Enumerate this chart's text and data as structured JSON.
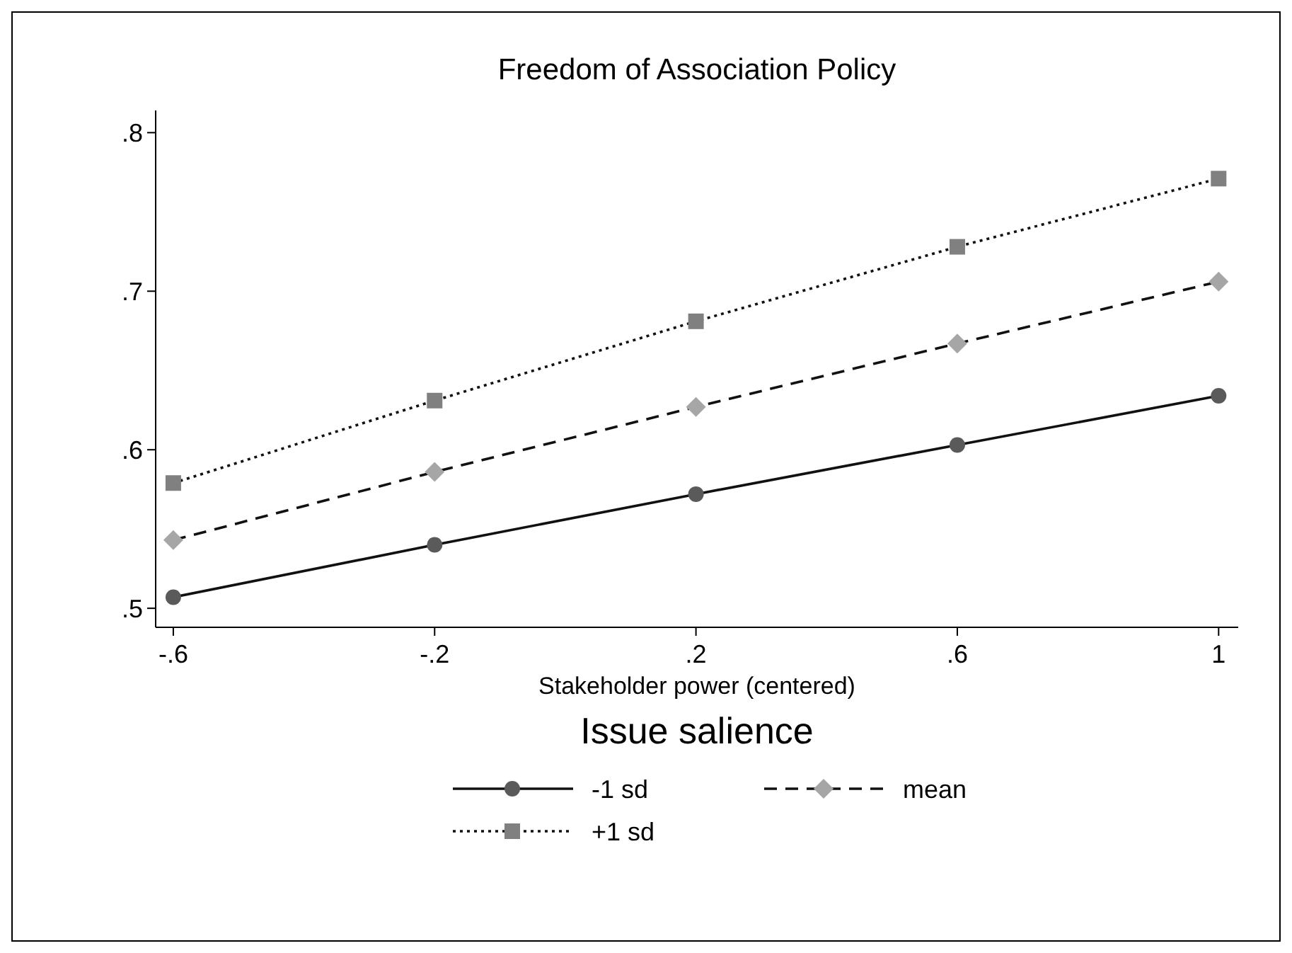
{
  "chart_data": {
    "type": "line",
    "title": "Freedom of Association Policy",
    "xlabel": "Stakeholder power (centered)",
    "legend_title": "Issue salience",
    "legend": "bottom",
    "grid": false,
    "x": [
      -0.6,
      -0.2,
      0.2,
      0.6,
      1
    ],
    "xlim": [
      -0.627,
      1.03
    ],
    "xticks": [
      {
        "value": -0.6,
        "label": "-.6"
      },
      {
        "value": -0.2,
        "label": "-.2"
      },
      {
        "value": 0.2,
        "label": ".2"
      },
      {
        "value": 0.6,
        "label": ".6"
      },
      1
    ],
    "ylim": [
      0.488,
      0.814
    ],
    "yticks": [
      {
        "value": 0.5,
        "label": ".5"
      },
      {
        "value": 0.6,
        "label": ".6"
      },
      {
        "value": 0.7,
        "label": ".7"
      },
      {
        "value": 0.8,
        "label": ".8"
      }
    ],
    "series": [
      {
        "name": "-1 sd",
        "color": "#5a5a5a",
        "marker": "circle",
        "line_style": "solid",
        "values": [
          0.507,
          0.54,
          0.572,
          0.603,
          0.634
        ]
      },
      {
        "name": "mean",
        "color": "#a6a6a6",
        "marker": "diamond",
        "line_style": "dashed",
        "values": [
          0.543,
          0.586,
          0.627,
          0.667,
          0.706
        ]
      },
      {
        "name": "+1 sd",
        "color": "#808080",
        "marker": "square",
        "line_style": "dotted",
        "values": [
          0.579,
          0.631,
          0.681,
          0.728,
          0.771
        ]
      }
    ]
  }
}
